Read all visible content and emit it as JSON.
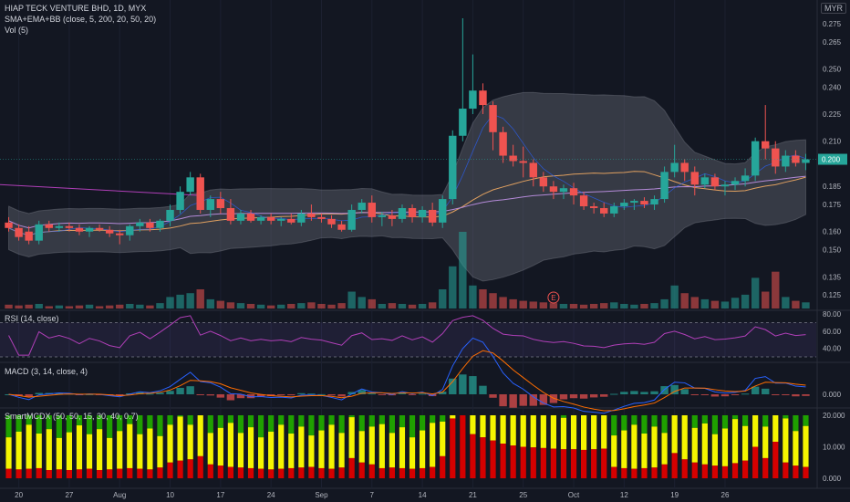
{
  "header": {
    "title": "HIAP TECK VENTURE BHD, 1D, MYX",
    "indicator1": "SMA+EMA+BB (close, 5, 200, 20, 50, 20)",
    "indicator2": "Vol (5)",
    "currency": "MYR"
  },
  "panes": {
    "rsi_label": "RSI (14, close)",
    "macd_label": "MACD (3, 14, close, 4)",
    "smart_label": "SmartMCDX (50, 50, 15, 30, 40, 0.7)",
    "earnings_marker": "E"
  },
  "colors": {
    "up": "#26a69a",
    "down": "#ef5350",
    "bb_fill": "#787b86",
    "ema": "#e0a060",
    "sma": "#b48ad8",
    "rsi": "#b03fb8",
    "macd": "#2962ff",
    "signal": "#ff6d00",
    "green": "#1fa000",
    "yellow": "#f5f500",
    "red": "#d50000"
  },
  "chart_data": {
    "type": "candlestick",
    "title": "HIAP TECK VENTURE BHD, 1D, MYX",
    "y_ticks": [
      "0.275",
      "0.265",
      "0.250",
      "0.240",
      "0.225",
      "0.210",
      "0.200",
      "0.185",
      "0.175",
      "0.160",
      "0.150",
      "0.135",
      "0.125"
    ],
    "last_price": "0.200",
    "x_ticks": [
      "20",
      "27",
      "Aug",
      "10",
      "17",
      "24",
      "Sep",
      "7",
      "14",
      "21",
      "25",
      "Oct",
      "12",
      "19",
      "26"
    ],
    "ohlc": [
      [
        0.165,
        0.168,
        0.16,
        0.162
      ],
      [
        0.162,
        0.164,
        0.155,
        0.157
      ],
      [
        0.16,
        0.163,
        0.153,
        0.155
      ],
      [
        0.155,
        0.166,
        0.153,
        0.164
      ],
      [
        0.164,
        0.166,
        0.16,
        0.162
      ],
      [
        0.162,
        0.165,
        0.16,
        0.163
      ],
      [
        0.163,
        0.165,
        0.16,
        0.162
      ],
      [
        0.162,
        0.164,
        0.158,
        0.16
      ],
      [
        0.16,
        0.163,
        0.157,
        0.162
      ],
      [
        0.162,
        0.164,
        0.16,
        0.161
      ],
      [
        0.161,
        0.163,
        0.157,
        0.159
      ],
      [
        0.159,
        0.161,
        0.153,
        0.158
      ],
      [
        0.158,
        0.164,
        0.155,
        0.163
      ],
      [
        0.163,
        0.167,
        0.16,
        0.165
      ],
      [
        0.165,
        0.167,
        0.16,
        0.162
      ],
      [
        0.162,
        0.167,
        0.16,
        0.166
      ],
      [
        0.166,
        0.175,
        0.163,
        0.172
      ],
      [
        0.172,
        0.185,
        0.17,
        0.182
      ],
      [
        0.182,
        0.193,
        0.18,
        0.19
      ],
      [
        0.19,
        0.192,
        0.17,
        0.172
      ],
      [
        0.172,
        0.18,
        0.168,
        0.178
      ],
      [
        0.178,
        0.182,
        0.17,
        0.173
      ],
      [
        0.173,
        0.178,
        0.164,
        0.166
      ],
      [
        0.166,
        0.172,
        0.164,
        0.17
      ],
      [
        0.17,
        0.172,
        0.165,
        0.166
      ],
      [
        0.166,
        0.169,
        0.164,
        0.168
      ],
      [
        0.168,
        0.17,
        0.164,
        0.166
      ],
      [
        0.166,
        0.168,
        0.163,
        0.167
      ],
      [
        0.167,
        0.17,
        0.164,
        0.165
      ],
      [
        0.165,
        0.172,
        0.163,
        0.17
      ],
      [
        0.17,
        0.175,
        0.166,
        0.168
      ],
      [
        0.168,
        0.17,
        0.165,
        0.167
      ],
      [
        0.167,
        0.169,
        0.162,
        0.164
      ],
      [
        0.164,
        0.166,
        0.16,
        0.161
      ],
      [
        0.161,
        0.175,
        0.16,
        0.172
      ],
      [
        0.172,
        0.178,
        0.17,
        0.176
      ],
      [
        0.176,
        0.18,
        0.165,
        0.168
      ],
      [
        0.168,
        0.171,
        0.163,
        0.169
      ],
      [
        0.169,
        0.172,
        0.163,
        0.167
      ],
      [
        0.167,
        0.175,
        0.165,
        0.173
      ],
      [
        0.173,
        0.175,
        0.165,
        0.168
      ],
      [
        0.168,
        0.174,
        0.165,
        0.172
      ],
      [
        0.172,
        0.176,
        0.163,
        0.165
      ],
      [
        0.165,
        0.18,
        0.162,
        0.178
      ],
      [
        0.178,
        0.216,
        0.175,
        0.213
      ],
      [
        0.213,
        0.278,
        0.21,
        0.228
      ],
      [
        0.228,
        0.258,
        0.225,
        0.238
      ],
      [
        0.238,
        0.242,
        0.225,
        0.23
      ],
      [
        0.23,
        0.232,
        0.205,
        0.215
      ],
      [
        0.215,
        0.218,
        0.198,
        0.202
      ],
      [
        0.202,
        0.208,
        0.196,
        0.199
      ],
      [
        0.199,
        0.207,
        0.19,
        0.198
      ],
      [
        0.198,
        0.2,
        0.185,
        0.19
      ],
      [
        0.19,
        0.193,
        0.182,
        0.185
      ],
      [
        0.185,
        0.188,
        0.178,
        0.182
      ],
      [
        0.182,
        0.186,
        0.178,
        0.184
      ],
      [
        0.184,
        0.187,
        0.175,
        0.18
      ],
      [
        0.18,
        0.182,
        0.172,
        0.174
      ],
      [
        0.174,
        0.176,
        0.17,
        0.173
      ],
      [
        0.173,
        0.176,
        0.168,
        0.17
      ],
      [
        0.17,
        0.176,
        0.168,
        0.174
      ],
      [
        0.174,
        0.178,
        0.172,
        0.176
      ],
      [
        0.176,
        0.178,
        0.172,
        0.177
      ],
      [
        0.177,
        0.179,
        0.173,
        0.175
      ],
      [
        0.175,
        0.18,
        0.172,
        0.178
      ],
      [
        0.178,
        0.196,
        0.176,
        0.193
      ],
      [
        0.193,
        0.208,
        0.19,
        0.198
      ],
      [
        0.198,
        0.2,
        0.188,
        0.193
      ],
      [
        0.193,
        0.196,
        0.18,
        0.186
      ],
      [
        0.186,
        0.192,
        0.184,
        0.19
      ],
      [
        0.19,
        0.192,
        0.183,
        0.185
      ],
      [
        0.185,
        0.188,
        0.18,
        0.186
      ],
      [
        0.186,
        0.19,
        0.183,
        0.188
      ],
      [
        0.188,
        0.195,
        0.185,
        0.191
      ],
      [
        0.191,
        0.212,
        0.188,
        0.21
      ],
      [
        0.21,
        0.23,
        0.2,
        0.206
      ],
      [
        0.206,
        0.21,
        0.192,
        0.196
      ],
      [
        0.196,
        0.205,
        0.193,
        0.202
      ],
      [
        0.202,
        0.205,
        0.196,
        0.198
      ],
      [
        0.198,
        0.203,
        0.194,
        0.2
      ]
    ],
    "volume_rel": [
      0.05,
      0.04,
      0.05,
      0.06,
      0.03,
      0.04,
      0.03,
      0.04,
      0.05,
      0.03,
      0.04,
      0.05,
      0.06,
      0.05,
      0.04,
      0.07,
      0.15,
      0.18,
      0.2,
      0.25,
      0.12,
      0.1,
      0.08,
      0.07,
      0.06,
      0.05,
      0.04,
      0.05,
      0.06,
      0.07,
      0.08,
      0.06,
      0.05,
      0.07,
      0.22,
      0.15,
      0.12,
      0.06,
      0.07,
      0.06,
      0.05,
      0.06,
      0.08,
      0.25,
      0.55,
      1.0,
      0.3,
      0.25,
      0.2,
      0.15,
      0.12,
      0.1,
      0.09,
      0.08,
      0.07,
      0.06,
      0.06,
      0.05,
      0.06,
      0.07,
      0.08,
      0.06,
      0.05,
      0.06,
      0.07,
      0.12,
      0.3,
      0.2,
      0.15,
      0.12,
      0.1,
      0.09,
      0.14,
      0.18,
      0.4,
      0.22,
      0.48,
      0.15,
      0.1,
      0.08
    ]
  }
}
